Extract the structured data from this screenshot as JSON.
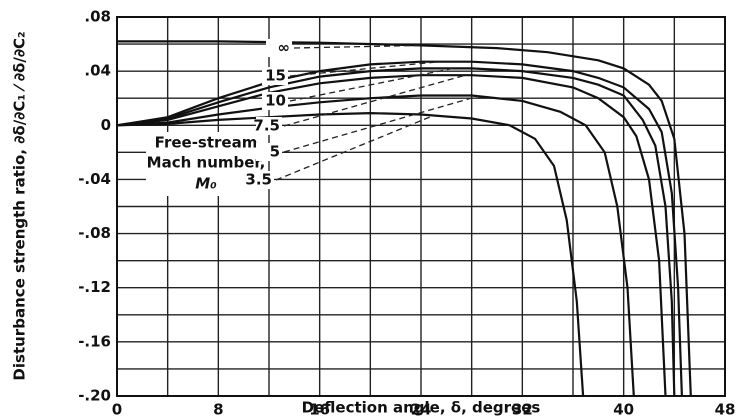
{
  "chart_data": {
    "type": "line",
    "xlabel": "Deflection angle, δ, degrees",
    "ylabel": "Disturbance strength ratio, ∂δ/∂C₁ ⁄ ∂δ/∂C₂",
    "annotations": [
      "Free-stream",
      "Mach number,",
      "M₀"
    ],
    "xlim": [
      0,
      48
    ],
    "ylim": [
      -0.2,
      0.08
    ],
    "xticks": [
      0,
      8,
      16,
      24,
      32,
      40,
      48
    ],
    "yticks": [
      {
        "value": 0.08,
        "label": ".08"
      },
      {
        "value": 0.04,
        "label": ".04"
      },
      0,
      {
        "value": -0.04,
        "label": "-.04"
      },
      {
        "value": -0.08,
        "label": "-.08"
      },
      {
        "value": -0.12,
        "label": "-.12"
      },
      {
        "value": -0.16,
        "label": "-.16"
      },
      {
        "value": -0.2,
        "label": "-.20"
      }
    ],
    "xminorticks": [
      4,
      12,
      20,
      28,
      36,
      44
    ],
    "yminorticks": [
      0.06,
      0.02,
      -0.02,
      -0.06,
      -0.1,
      -0.14,
      -0.18
    ],
    "grid": true,
    "series": [
      {
        "name": "∞",
        "color": "#111111",
        "x": [
          0,
          8,
          16,
          24,
          30,
          34,
          38,
          40,
          42,
          43,
          44,
          44.8,
          45.3
        ],
        "values": [
          0.062,
          0.062,
          0.061,
          0.059,
          0.057,
          0.054,
          0.048,
          0.042,
          0.03,
          0.018,
          -0.01,
          -0.08,
          -0.2
        ]
      },
      {
        "name": "15",
        "color": "#111111",
        "x": [
          0,
          4,
          8,
          12,
          16,
          20,
          24,
          28,
          32,
          36,
          38,
          40,
          42,
          43,
          43.8,
          44.3,
          44.6
        ],
        "values": [
          0,
          0.006,
          0.02,
          0.032,
          0.04,
          0.045,
          0.047,
          0.047,
          0.045,
          0.04,
          0.035,
          0.028,
          0.012,
          -0.005,
          -0.05,
          -0.12,
          -0.2
        ]
      },
      {
        "name": "10",
        "color": "#111111",
        "x": [
          0,
          4,
          8,
          12,
          16,
          20,
          24,
          28,
          32,
          36,
          38,
          40,
          41.5,
          42.5,
          43.3,
          43.8,
          44.0
        ],
        "values": [
          0,
          0.005,
          0.017,
          0.028,
          0.036,
          0.04,
          0.042,
          0.042,
          0.04,
          0.035,
          0.03,
          0.022,
          0.004,
          -0.015,
          -0.06,
          -0.13,
          -0.2
        ]
      },
      {
        "name": "7.5",
        "color": "#111111",
        "x": [
          0,
          4,
          8,
          12,
          16,
          20,
          24,
          28,
          32,
          36,
          38,
          40,
          41,
          42,
          42.8,
          43.3
        ],
        "values": [
          0,
          0.004,
          0.014,
          0.024,
          0.031,
          0.035,
          0.037,
          0.037,
          0.035,
          0.028,
          0.02,
          0.006,
          -0.008,
          -0.04,
          -0.1,
          -0.2
        ]
      },
      {
        "name": "5",
        "color": "#111111",
        "x": [
          0,
          4,
          8,
          12,
          16,
          20,
          24,
          28,
          32,
          35,
          37,
          38.5,
          39.5,
          40.3,
          40.8
        ],
        "values": [
          0,
          0.002,
          0.008,
          0.013,
          0.017,
          0.02,
          0.022,
          0.022,
          0.018,
          0.01,
          0,
          -0.02,
          -0.06,
          -0.12,
          -0.2
        ]
      },
      {
        "name": "3.5",
        "color": "#111111",
        "x": [
          0,
          4,
          8,
          12,
          16,
          20,
          24,
          28,
          31,
          33,
          34.5,
          35.5,
          36.3,
          36.8
        ],
        "values": [
          0,
          0.001,
          0.004,
          0.006,
          0.008,
          0.009,
          0.008,
          0.005,
          0,
          -0.01,
          -0.03,
          -0.07,
          -0.13,
          -0.2
        ]
      }
    ]
  }
}
